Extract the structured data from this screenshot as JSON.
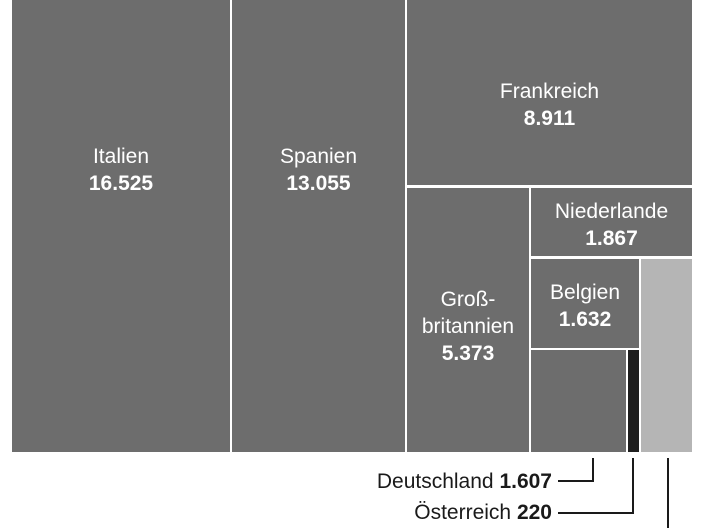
{
  "chart_data": {
    "type": "treemap",
    "items": [
      {
        "name": "Italien",
        "value": "16.525",
        "color": "#6d6d6d"
      },
      {
        "name": "Spanien",
        "value": "13.055",
        "color": "#6d6d6d"
      },
      {
        "name": "Frankreich",
        "value": "8.911",
        "color": "#6d6d6d"
      },
      {
        "name": "Groß-\nbritannien",
        "value": "5.373",
        "color": "#6d6d6d"
      },
      {
        "name": "Niederlande",
        "value": "1.867",
        "color": "#6d6d6d"
      },
      {
        "name": "Belgien",
        "value": "1.632",
        "color": "#6d6d6d"
      },
      {
        "name": "Deutschland",
        "value": "1.607",
        "color": "#6d6d6d"
      },
      {
        "name": "Österreich",
        "value": "220",
        "color": "#1e1e1e"
      },
      {
        "name": "",
        "value": "",
        "color": "#b5b5b5"
      }
    ]
  }
}
